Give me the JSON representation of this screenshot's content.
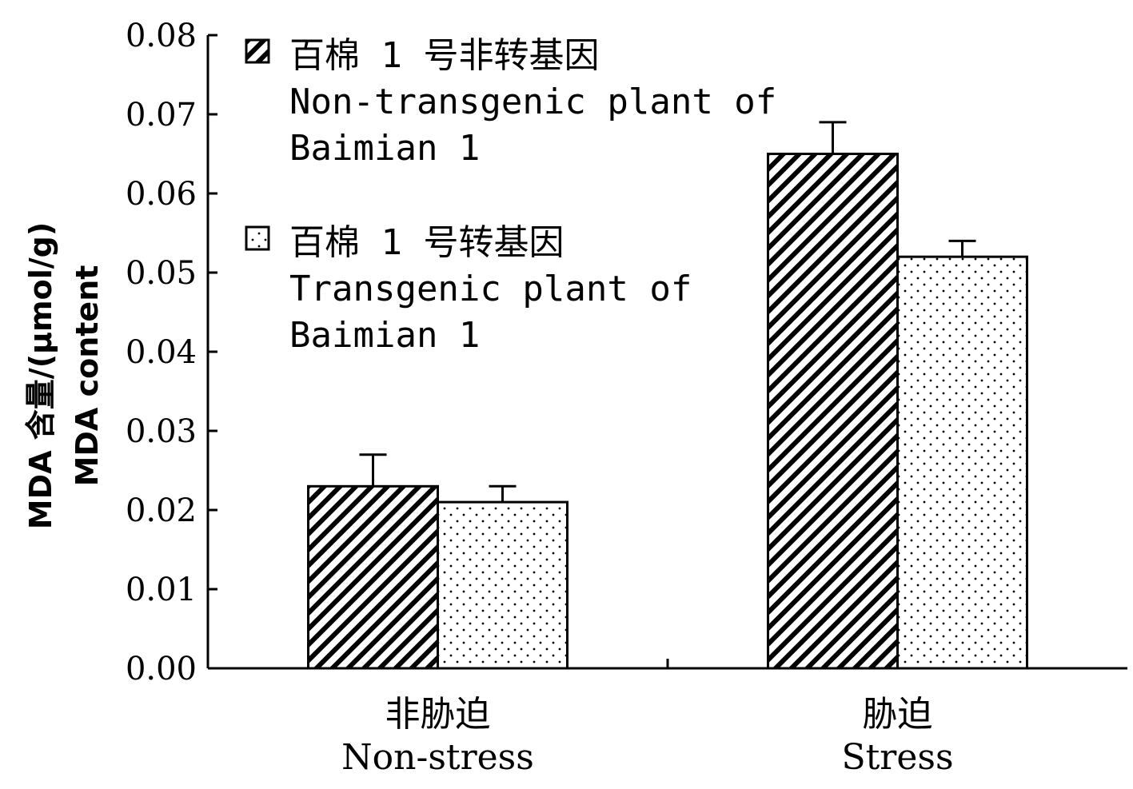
{
  "chart_data": {
    "type": "bar",
    "categories": [
      "非胁迫\nNon-stress",
      "胁迫\nStress"
    ],
    "series": [
      {
        "name": "百棉 1 号非转基因\nNon-transgenic plant of\nBaimian 1",
        "values": [
          0.023,
          0.065
        ],
        "errors": [
          0.004,
          0.004
        ],
        "pattern": "hatch"
      },
      {
        "name": "百棉 1 号转基因\nTransgenic plant of\nBaimian 1",
        "values": [
          0.021,
          0.052
        ],
        "errors": [
          0.002,
          0.002
        ],
        "pattern": "dots"
      }
    ],
    "ylabel": "MDA 含量/(μmol/g)\nMDA content",
    "ylim": [
      0,
      0.08
    ],
    "yticks": [
      "0.00",
      "0.01",
      "0.02",
      "0.03",
      "0.04",
      "0.05",
      "0.06",
      "0.07",
      "0.08"
    ],
    "grid": false,
    "legend_position": "top-left"
  }
}
